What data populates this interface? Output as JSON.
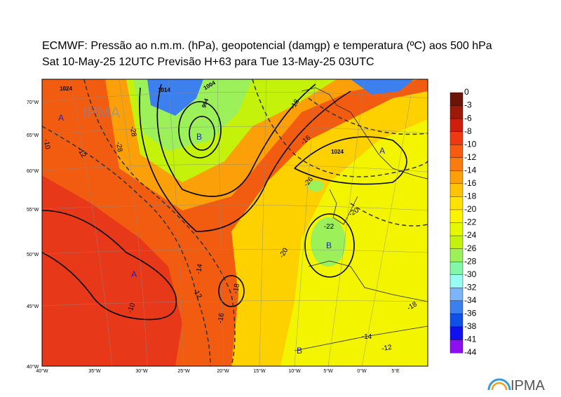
{
  "header": {
    "title": "ECMWF:  Pressão ao n.m.m. (hPa), geopotencial (damgp) e temperatura (ºC) aos 500 hPa",
    "subtitle": "Sat 10-May-25 12UTC Previsão H+63 para Tue 13-May-25 03UTC"
  },
  "lat_labels": [
    "70°W",
    "65°W",
    "60°W",
    "55°W",
    "50°W",
    "45°W",
    "40°W"
  ],
  "lon_labels": [
    "40°W",
    "35°W",
    "30°W",
    "25°W",
    "20°W",
    "15°W",
    "10°W",
    "5°W",
    "0°W",
    "5°E"
  ],
  "colorbar": {
    "levels": [
      0,
      -3,
      -6,
      -8,
      -10,
      -12,
      -14,
      -16,
      -18,
      -20,
      -22,
      -24,
      -26,
      -28,
      -30,
      -32,
      -34,
      -36,
      -38,
      -41,
      -44
    ],
    "colors": [
      "#6b1508",
      "#9c1a0a",
      "#d01e0e",
      "#ee3a12",
      "#f85a10",
      "#fa7c0e",
      "#fca00a",
      "#fdc406",
      "#fee200",
      "#fef400",
      "#e4f800",
      "#c4f20a",
      "#9cf05a",
      "#84f6a8",
      "#98fcf0",
      "#7cb4f8",
      "#3c80f0",
      "#1050e8",
      "#1010f0",
      "#8c10f0"
    ]
  },
  "map_labels": {
    "pressure": [
      "1024",
      "1014",
      "1004",
      "994",
      "1024"
    ],
    "temperature": [
      "-28",
      "-28",
      "-18",
      "-16",
      "-26",
      "-22",
      "-20",
      "-20",
      "-18",
      "-14",
      "-12",
      "-10",
      "-10",
      "-12",
      "-16",
      "-14",
      "-12",
      "-18"
    ],
    "highs": [
      "A",
      "A",
      "A"
    ],
    "lows": [
      "B",
      "B",
      "B"
    ]
  },
  "logo": "IPMA"
}
